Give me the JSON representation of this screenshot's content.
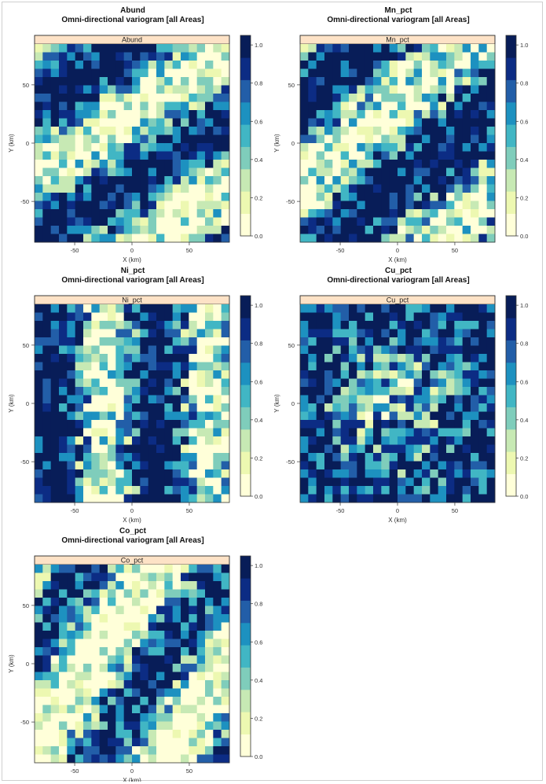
{
  "chart_data": [
    {
      "type": "heatmap",
      "title": "Abund",
      "subtitle": "Omni-directional variogram [all Areas]",
      "panel_label": "Abund",
      "xlabel": "X (km)",
      "ylabel": "Y (km)",
      "xlim": [
        -85,
        85
      ],
      "ylim": [
        -85,
        85
      ],
      "xticks": [
        -50,
        0,
        50
      ],
      "yticks": [
        -50,
        0,
        50
      ],
      "colorbar_ticks": [
        0.0,
        0.2,
        0.4,
        0.6,
        0.8,
        1.0
      ],
      "zlim": [
        0,
        1.05
      ],
      "grid_size": [
        24,
        24
      ],
      "pattern": {
        "angle": 32,
        "freq": 0.02,
        "phase": 1.75,
        "radial": 0.0,
        "bias": 0.1,
        "noise": 0.42,
        "seed": 11
      }
    },
    {
      "type": "heatmap",
      "title": "Mn_pct",
      "subtitle": "Omni-directional variogram [all Areas]",
      "panel_label": "Mn_pct",
      "xlabel": "X (km)",
      "ylabel": "Y (km)",
      "xlim": [
        -85,
        85
      ],
      "ylim": [
        -85,
        85
      ],
      "xticks": [
        -50,
        0,
        50
      ],
      "yticks": [
        -50,
        0,
        50
      ],
      "colorbar_ticks": [
        0.0,
        0.2,
        0.4,
        0.6,
        0.8,
        1.0
      ],
      "zlim": [
        0,
        1.05
      ],
      "grid_size": [
        24,
        24
      ],
      "pattern": {
        "angle": 40,
        "freq": 0.018,
        "phase": 1.6,
        "radial": 0.0,
        "bias": 0.15,
        "noise": 0.48,
        "seed": 23
      }
    },
    {
      "type": "heatmap",
      "title": "Ni_pct",
      "subtitle": "Omni-directional variogram [all Areas]",
      "panel_label": "Ni_pct",
      "xlabel": "X (km)",
      "ylabel": "Y (km)",
      "xlim": [
        -85,
        85
      ],
      "ylim": [
        -85,
        85
      ],
      "xticks": [
        -50,
        0,
        50
      ],
      "yticks": [
        -50,
        0,
        50
      ],
      "colorbar_ticks": [
        0.0,
        0.2,
        0.4,
        0.6,
        0.8,
        1.0
      ],
      "zlim": [
        0,
        1.05
      ],
      "grid_size": [
        24,
        24
      ],
      "pattern": {
        "angle": 90,
        "freq": 0.022,
        "phase": 1.5,
        "radial": 0.0,
        "bias": 0.15,
        "noise": 0.5,
        "seed": 37
      }
    },
    {
      "type": "heatmap",
      "title": "Cu_pct",
      "subtitle": "Omni-directional variogram [all Areas]",
      "panel_label": "Cu_pct",
      "xlabel": "X (km)",
      "ylabel": "Y (km)",
      "xlim": [
        -85,
        85
      ],
      "ylim": [
        -85,
        85
      ],
      "xticks": [
        -50,
        0,
        50
      ],
      "yticks": [
        -50,
        0,
        50
      ],
      "colorbar_ticks": [
        0.0,
        0.2,
        0.4,
        0.6,
        0.8,
        1.0
      ],
      "zlim": [
        0,
        1.05
      ],
      "grid_size": [
        24,
        24
      ],
      "pattern": {
        "angle": 0,
        "freq": 0.0,
        "phase": 0.0,
        "radial": 0.011,
        "bias": 0.05,
        "noise": 0.48,
        "seed": 51
      }
    },
    {
      "type": "heatmap",
      "title": "Co_pct",
      "subtitle": "Omni-directional variogram [all Areas]",
      "panel_label": "Co_pct",
      "xlabel": "X (km)",
      "ylabel": "Y (km)",
      "xlim": [
        -85,
        85
      ],
      "ylim": [
        -85,
        85
      ],
      "xticks": [
        -50,
        0,
        50
      ],
      "yticks": [
        -50,
        0,
        50
      ],
      "colorbar_ticks": [
        0.0,
        0.2,
        0.4,
        0.6,
        0.8,
        1.0
      ],
      "zlim": [
        0,
        1.05
      ],
      "grid_size": [
        24,
        24
      ],
      "pattern": {
        "angle": 55,
        "freq": 0.02,
        "phase": 1.2,
        "radial": 0.0,
        "bias": -0.05,
        "noise": 0.45,
        "seed": 67
      }
    }
  ],
  "colors": {
    "strip_fill": "#fde2c6",
    "frame": "#333333",
    "palette": [
      "#ffffd9",
      "#edf8b1",
      "#c7e9b4",
      "#7fcdbb",
      "#41b6c4",
      "#1d91c0",
      "#225ea8",
      "#0c2c84",
      "#081d58"
    ]
  }
}
